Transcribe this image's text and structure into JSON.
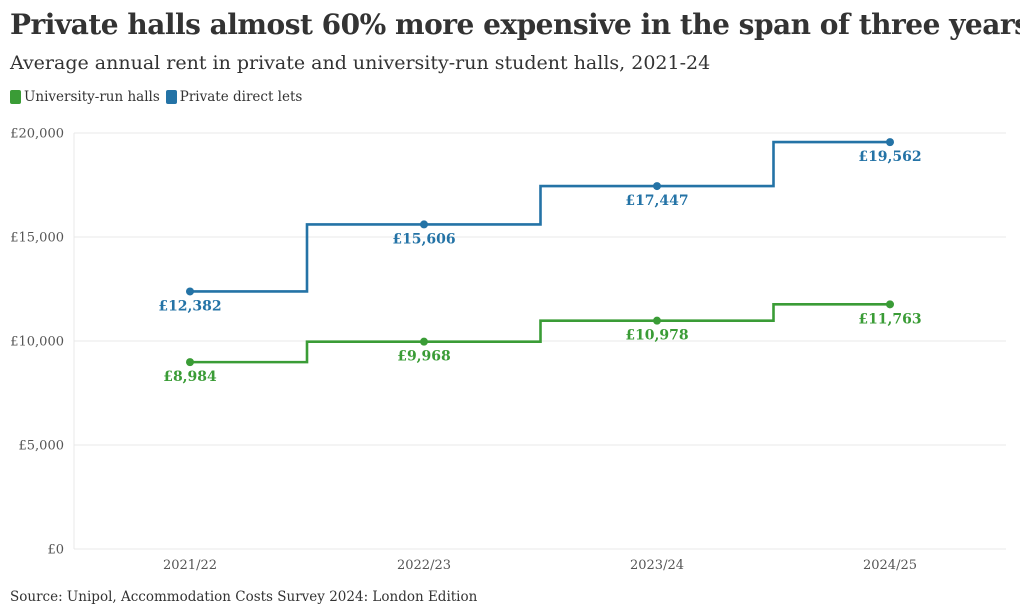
{
  "title": "Private halls almost 60% more expensive in the span of three years",
  "subtitle": "Average annual rent in private and university-run student halls, 2021-24",
  "source": "Source: Unipol, Accommodation Costs Survey 2024: London Edition",
  "colors": {
    "university": "#3a9c36",
    "private": "#2473a6",
    "grid": "#e9e9e9",
    "text": "#333333"
  },
  "chart_data": {
    "type": "line",
    "step": true,
    "title": "Private halls almost 60% more expensive in the span of three years",
    "subtitle": "Average annual rent in private and university-run student halls, 2021-24",
    "xlabel": "",
    "ylabel": "",
    "categories": [
      "2021/22",
      "2022/23",
      "2023/24",
      "2024/25"
    ],
    "ylim": [
      0,
      20000
    ],
    "yticks": [
      0,
      5000,
      10000,
      15000,
      20000
    ],
    "ytick_labels": [
      "£0",
      "£5,000",
      "£10,000",
      "£15,000",
      "£20,000"
    ],
    "grid": true,
    "legend_position": "top-left",
    "series": [
      {
        "name": "University-run halls",
        "color": "#3a9c36",
        "values": [
          8984,
          9968,
          10978,
          11763
        ],
        "labels": [
          "£8,984",
          "£9,968",
          "£10,978",
          "£11,763"
        ]
      },
      {
        "name": "Private direct lets",
        "color": "#2473a6",
        "values": [
          12382,
          15606,
          17447,
          19562
        ],
        "labels": [
          "£12,382",
          "£15,606",
          "£17,447",
          "£19,562"
        ]
      }
    ]
  }
}
